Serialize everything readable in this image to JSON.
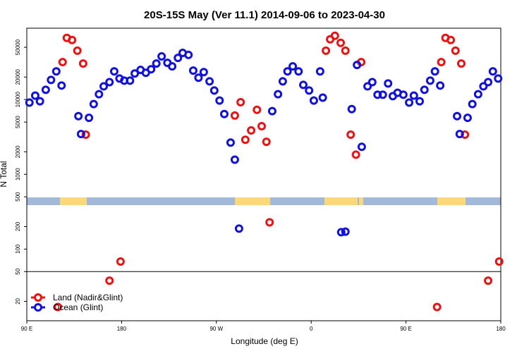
{
  "chart_data": {
    "type": "scatter",
    "title": "20S-15S May (Ver 11.1)   2014-09-06 to 2023-04-30",
    "x_label": "Longitude (deg E)",
    "y_label": "N Total",
    "log_y": true,
    "xlim": [
      90,
      540
    ],
    "ylim": [
      11,
      90000
    ],
    "xticks": [
      {
        "value": 90,
        "label": "90 E"
      },
      {
        "value": 180,
        "label": "180"
      },
      {
        "value": 270,
        "label": "90 W"
      },
      {
        "value": 360,
        "label": "0"
      },
      {
        "value": 450,
        "label": "90 E"
      },
      {
        "value": 540,
        "label": "180"
      }
    ],
    "yticks": [
      20,
      50,
      100,
      200,
      500,
      1000,
      2000,
      5000,
      10000,
      20000,
      50000
    ],
    "reference_line": 50,
    "legend": "bottom-left",
    "series": [
      {
        "name": "Land (Nadir&Glint)",
        "color": "#ee1111",
        "x": [
          124,
          128,
          133,
          138,
          143.5,
          146,
          119.5,
          168.5,
          179,
          287.5,
          293,
          297.5,
          303,
          308.5,
          313,
          317.5,
          320.5,
          374,
          378,
          382.5,
          388,
          392.5,
          397.5,
          402.5,
          407.5,
          479.5,
          483.5,
          487.5,
          492.5,
          497,
          502.5,
          506,
          528,
          538.5
        ],
        "values": [
          31700,
          66800,
          62500,
          45000,
          30300,
          3390,
          16.8,
          37.8,
          68.2,
          6120,
          9220,
          2900,
          3860,
          7300,
          4400,
          2720,
          228,
          45000,
          64000,
          71300,
          57300,
          45000,
          3390,
          1830,
          31700,
          16.8,
          31700,
          66800,
          62500,
          45000,
          30300,
          3390,
          37.8,
          68.2
        ]
      },
      {
        "name": "Ocean (Glint)",
        "color": "#1111dd",
        "x": [
          92.5,
          98,
          102.5,
          108,
          113,
          118,
          123,
          139,
          141.5,
          149,
          153.5,
          158.5,
          163,
          168.5,
          173,
          178,
          182.5,
          188,
          192.5,
          198,
          203,
          208,
          213,
          218,
          223.5,
          228,
          233.5,
          238,
          243.5,
          248,
          253,
          258,
          263.5,
          268,
          273,
          277.5,
          283.5,
          287.5,
          291.5,
          323,
          328.5,
          333,
          337.5,
          342.5,
          348,
          352.5,
          358,
          362.5,
          368.5,
          371,
          388.5,
          392.5,
          398.5,
          403.5,
          408,
          413.5,
          418,
          423,
          428,
          433,
          437.5,
          442,
          447.5,
          453,
          457.5,
          463,
          467.5,
          473,
          477.5,
          482.5,
          498.5,
          501,
          508.5,
          513,
          518.5,
          523.5,
          528,
          532.5,
          537.5
        ],
        "values": [
          9100,
          11300,
          9500,
          13500,
          18300,
          23800,
          15400,
          6000,
          3460,
          5700,
          8700,
          11800,
          15000,
          17100,
          23800,
          19100,
          17900,
          17900,
          22300,
          24900,
          22800,
          25400,
          30300,
          37800,
          31000,
          27800,
          36100,
          42100,
          39500,
          24400,
          19600,
          23300,
          17500,
          13200,
          9700,
          6400,
          2660,
          1570,
          188,
          7000,
          11800,
          17500,
          23800,
          27800,
          23800,
          15700,
          13200,
          9700,
          23800,
          10600,
          168,
          171,
          7450,
          29000,
          2330,
          15000,
          17100,
          11600,
          11600,
          16400,
          11100,
          12300,
          11600,
          9100,
          11300,
          9500,
          13500,
          17900,
          23800,
          15400,
          6000,
          3460,
          5700,
          8700,
          11800,
          15000,
          17100,
          23800,
          19100
        ]
      }
    ]
  }
}
